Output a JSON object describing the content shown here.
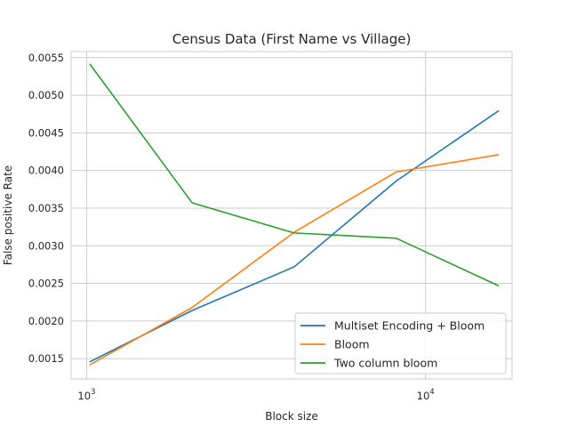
{
  "chart_data": {
    "type": "line",
    "title": "Census Data (First Name vs Village)",
    "xlabel": "Block size",
    "ylabel": "False positive Rate",
    "xscale": "log",
    "xlim": [
      900,
      18000
    ],
    "ylim": [
      0.00123,
      0.00558
    ],
    "x_ticks": [
      {
        "value": 1000,
        "base": "10",
        "exp": "3"
      },
      {
        "value": 10000,
        "base": "10",
        "exp": "4"
      }
    ],
    "y_ticks": [
      {
        "value": 0.0015,
        "label": "0.0015"
      },
      {
        "value": 0.002,
        "label": "0.0020"
      },
      {
        "value": 0.0025,
        "label": "0.0025"
      },
      {
        "value": 0.003,
        "label": "0.0030"
      },
      {
        "value": 0.0035,
        "label": "0.0035"
      },
      {
        "value": 0.004,
        "label": "0.0040"
      },
      {
        "value": 0.0045,
        "label": "0.0045"
      },
      {
        "value": 0.005,
        "label": "0.0050"
      },
      {
        "value": 0.0055,
        "label": "0.0055"
      }
    ],
    "grid": true,
    "legend_position": "lower-right",
    "x": [
      1024,
      2048,
      4096,
      8192,
      16384
    ],
    "series": [
      {
        "name": "Multiset Encoding + Bloom",
        "color": "#1f77b4",
        "values": [
          0.00146,
          0.00214,
          0.00272,
          0.00386,
          0.00479
        ]
      },
      {
        "name": "Bloom",
        "color": "#ff7f0e",
        "values": [
          0.00142,
          0.00218,
          0.00318,
          0.00398,
          0.00421
        ]
      },
      {
        "name": "Two column bloom",
        "color": "#2ca02c",
        "values": [
          0.00541,
          0.00357,
          0.00317,
          0.0031,
          0.00247
        ]
      }
    ]
  }
}
